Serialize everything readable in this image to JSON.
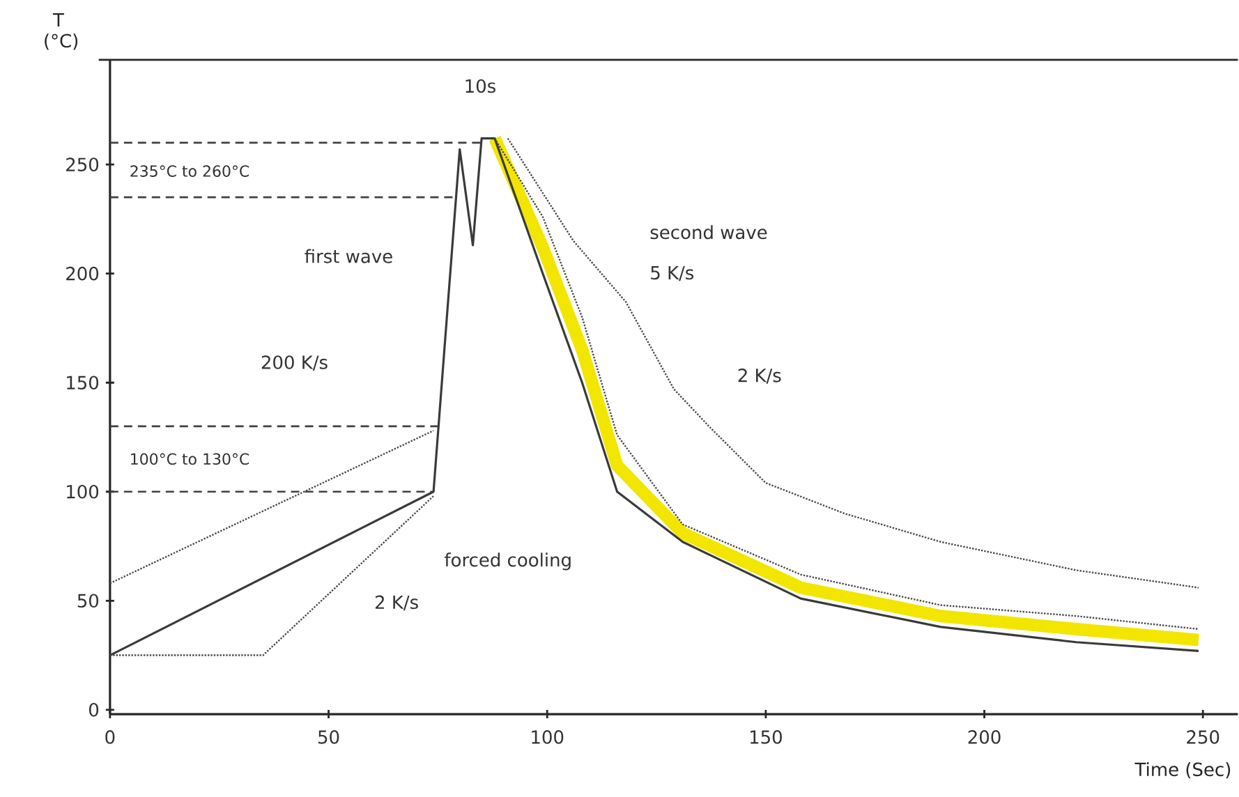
{
  "chart_data": {
    "type": "line",
    "xlabel": "Time (Sec)",
    "ylabel": "T (°C)",
    "xlim": [
      0,
      258
    ],
    "ylim": [
      -2,
      298
    ],
    "xticks": [
      0,
      50,
      100,
      150,
      200,
      250
    ],
    "yticks": [
      0,
      50,
      100,
      150,
      200,
      250
    ],
    "grid": false,
    "series": [
      {
        "color": "#f2e600",
        "line_style": "solid",
        "x": [
          88,
          99,
          108,
          116,
          131,
          158,
          190,
          221,
          249
        ],
        "values": [
          262,
          212,
          165,
          112,
          81,
          56,
          43,
          37,
          32
        ]
      },
      {
        "color": "#3a3a3a",
        "line_style": "solid",
        "x": [
          0,
          74,
          80,
          83,
          85,
          88,
          99,
          108,
          116,
          131,
          158,
          190,
          221,
          249
        ],
        "values": [
          25,
          100,
          257,
          213,
          262,
          262,
          200,
          150,
          100,
          77,
          51,
          38,
          31,
          27
        ]
      },
      {
        "color": "#4a4a4a",
        "line_style": "dotted",
        "x": [
          0,
          74
        ],
        "values": [
          58,
          128
        ]
      },
      {
        "color": "#4a4a4a",
        "line_style": "dotted",
        "x": [
          0,
          35,
          74
        ],
        "values": [
          25,
          25,
          98
        ]
      },
      {
        "color": "#4a4a4a",
        "line_style": "dotted",
        "x": [
          88,
          99,
          108,
          116,
          131,
          158,
          190,
          221,
          249
        ],
        "values": [
          262,
          226,
          180,
          126,
          85,
          62,
          48,
          43,
          37
        ]
      },
      {
        "color": "#4a4a4a",
        "line_style": "dotted",
        "x": [
          91,
          106,
          118,
          129,
          137,
          150,
          168,
          190,
          221,
          249
        ],
        "values": [
          262,
          215,
          187,
          147,
          130,
          104,
          90,
          77,
          64,
          56
        ]
      }
    ],
    "ref_lines": [
      {
        "axis": "y",
        "value": 260,
        "line_style": "dashed"
      },
      {
        "axis": "y",
        "value": 235,
        "line_style": "dashed"
      },
      {
        "axis": "y",
        "value": 130,
        "line_style": "dashed"
      },
      {
        "axis": "y",
        "value": 100,
        "line_style": "dashed"
      }
    ],
    "annotations": [
      "235°C to 260°C",
      "100°C to 130°C",
      "10s",
      "second wave",
      "first wave",
      "200 K/s",
      "5 K/s",
      "2 K/s",
      "forced cooling",
      "2 K/s"
    ]
  }
}
